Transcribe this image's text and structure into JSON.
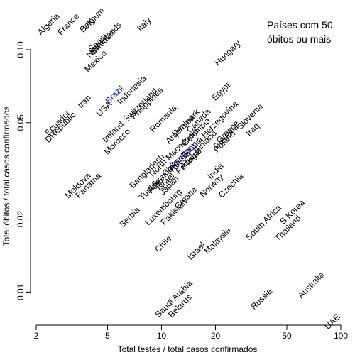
{
  "chart_data": {
    "type": "scatter",
    "title": "",
    "xlabel": "Total testes / total casos confirmados",
    "ylabel": "Total óbitos / total casos confirmados",
    "x_scale": "log",
    "y_scale": "log",
    "xlim": [
      2,
      100
    ],
    "ylim": [
      0.0073,
      0.155
    ],
    "x_ticks": [
      2,
      5,
      10,
      20,
      50,
      100
    ],
    "y_ticks": [
      0.01,
      0.02,
      0.05,
      0.1
    ],
    "y_tick_labels": [
      "0.01",
      "0.02",
      "0.05",
      "0.10"
    ],
    "legend_lines": [
      "Países com 50",
      "óbitos ou mais"
    ],
    "legend_position": "top-right",
    "grid": false,
    "colors": {
      "default": "#000000",
      "highlight": "#0000cc"
    },
    "points": [
      {
        "label": "Algeria",
        "x": 2.4,
        "y": 0.125
      },
      {
        "label": "France",
        "x": 3.1,
        "y": 0.125
      },
      {
        "label": "Belgium",
        "x": 4.2,
        "y": 0.13
      },
      {
        "label": "UK",
        "x": 4.0,
        "y": 0.125
      },
      {
        "label": "Italy",
        "x": 8.2,
        "y": 0.125
      },
      {
        "label": "Spain",
        "x": 4.5,
        "y": 0.105
      },
      {
        "label": "Netherlands",
        "x": 4.9,
        "y": 0.108
      },
      {
        "label": "Sweden",
        "x": 4.8,
        "y": 0.105
      },
      {
        "label": "Mexico",
        "x": 4.4,
        "y": 0.088
      },
      {
        "label": "Hungary",
        "x": 24,
        "y": 0.095
      },
      {
        "label": "Indonesia",
        "x": 7.0,
        "y": 0.067
      },
      {
        "label": "Brazil",
        "x": 5.6,
        "y": 0.064,
        "highlight": true
      },
      {
        "label": "Iran",
        "x": 3.8,
        "y": 0.06
      },
      {
        "label": "USA",
        "x": 4.9,
        "y": 0.056
      },
      {
        "label": "Philippines",
        "x": 8.5,
        "y": 0.059
      },
      {
        "label": "Switzerland",
        "x": 7.8,
        "y": 0.058
      },
      {
        "label": "Egypt",
        "x": 22,
        "y": 0.066
      },
      {
        "label": "Ecuador",
        "x": 2.7,
        "y": 0.049
      },
      {
        "label": "DRepublic",
        "x": 2.8,
        "y": 0.047
      },
      {
        "label": "Romania",
        "x": 10.5,
        "y": 0.051
      },
      {
        "label": "Denmark",
        "x": 14,
        "y": 0.049
      },
      {
        "label": "Canada",
        "x": 16.5,
        "y": 0.05
      },
      {
        "label": "Ireland",
        "x": 5.5,
        "y": 0.045
      },
      {
        "label": "Morocco",
        "x": 5.8,
        "y": 0.041
      },
      {
        "label": "Argentina",
        "x": 13,
        "y": 0.046
      },
      {
        "label": "Colombia",
        "x": 16,
        "y": 0.045
      },
      {
        "label": "Bosnia Herzegovina",
        "x": 19,
        "y": 0.046
      },
      {
        "label": "Greece",
        "x": 24,
        "y": 0.045
      },
      {
        "label": "Slovenia",
        "x": 32,
        "y": 0.052
      },
      {
        "label": "Iraq",
        "x": 33,
        "y": 0.046
      },
      {
        "label": "Poland",
        "x": 23,
        "y": 0.041
      },
      {
        "label": "Bulgaria",
        "x": 23.5,
        "y": 0.043
      },
      {
        "label": "Finland",
        "x": 18,
        "y": 0.041
      },
      {
        "label": "North Macedonia",
        "x": 12,
        "y": 0.037
      },
      {
        "label": "Germany",
        "x": 13.5,
        "y": 0.036,
        "highlight": true
      },
      {
        "label": "Austria",
        "x": 15,
        "y": 0.035
      },
      {
        "label": "Portugal",
        "x": 14.5,
        "y": 0.034
      },
      {
        "label": "Bangladesh",
        "x": 8.5,
        "y": 0.031
      },
      {
        "label": "Russia",
        "x": 13,
        "y": 0.034
      },
      {
        "label": "Turkey",
        "x": 8.8,
        "y": 0.026
      },
      {
        "label": "Peru",
        "x": 9.5,
        "y": 0.027
      },
      {
        "label": "Ukraine",
        "x": 10.2,
        "y": 0.029
      },
      {
        "label": "Chile",
        "x": 11.5,
        "y": 0.032
      },
      {
        "label": "Israel",
        "x": 10.8,
        "y": 0.028
      },
      {
        "label": "Japan",
        "x": 11.3,
        "y": 0.027
      },
      {
        "label": "India",
        "x": 20.5,
        "y": 0.031
      },
      {
        "label": "Moldova",
        "x": 3.5,
        "y": 0.027
      },
      {
        "label": "Panama",
        "x": 4.0,
        "y": 0.027
      },
      {
        "label": "Norway",
        "x": 19.5,
        "y": 0.027
      },
      {
        "label": "Czechia",
        "x": 25,
        "y": 0.027
      },
      {
        "label": "Croatia",
        "x": 14,
        "y": 0.024
      },
      {
        "label": "Luxembourg",
        "x": 10.5,
        "y": 0.022
      },
      {
        "label": "Pakistan",
        "x": 12,
        "y": 0.021
      },
      {
        "label": "Serbia",
        "x": 6.8,
        "y": 0.02
      },
      {
        "label": "South Africa",
        "x": 38,
        "y": 0.019
      },
      {
        "label": "S.Korea",
        "x": 55,
        "y": 0.021
      },
      {
        "label": "Thailand",
        "x": 52,
        "y": 0.018
      },
      {
        "label": "Malaysia",
        "x": 21,
        "y": 0.016
      },
      {
        "label": "Chile",
        "x": 10.5,
        "y": 0.0155
      },
      {
        "label": "Israel",
        "x": 16,
        "y": 0.0145
      },
      {
        "label": "Australia",
        "x": 70,
        "y": 0.0105
      },
      {
        "label": "Russia",
        "x": 37,
        "y": 0.0092
      },
      {
        "label": "Saudi Arabia",
        "x": 12,
        "y": 0.0092
      },
      {
        "label": "Belarus",
        "x": 13,
        "y": 0.0086
      },
      {
        "label": "UAE",
        "x": 92,
        "y": 0.0074
      }
    ]
  }
}
